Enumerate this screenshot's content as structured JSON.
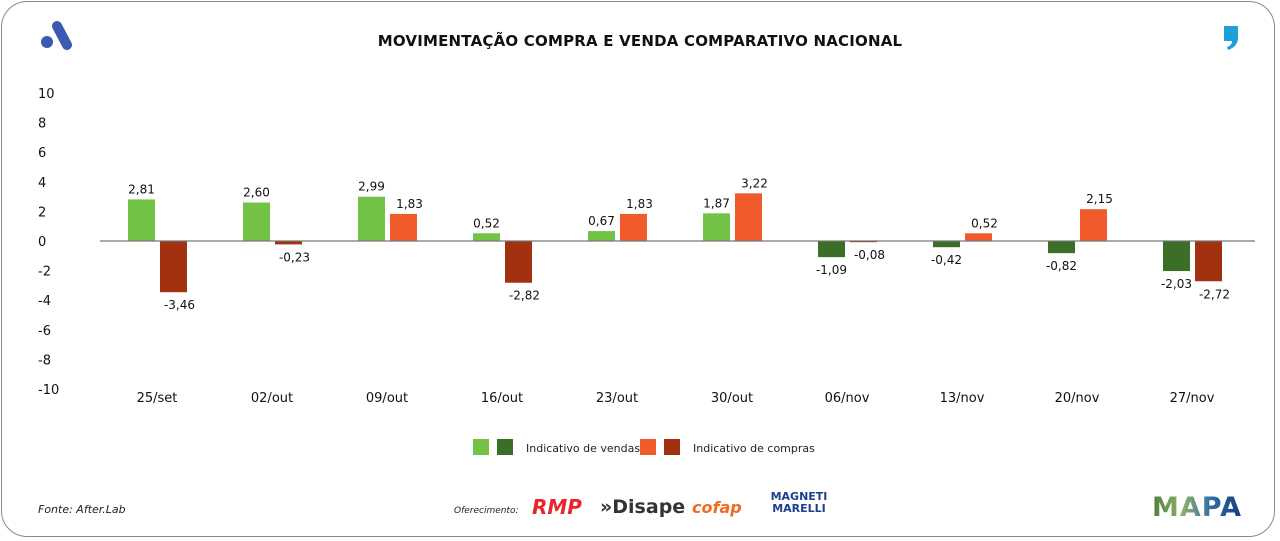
{
  "brand_logo_text": "A",
  "quote_logo_text": "”",
  "chart_data": {
    "type": "bar",
    "title": "MOVIMENTAÇÃO COMPRA E VENDA COMPARATIVO NACIONAL",
    "categories": [
      "25/set",
      "02/out",
      "09/out",
      "16/out",
      "23/out",
      "30/out",
      "06/nov",
      "13/nov",
      "20/nov",
      "27/nov"
    ],
    "series": [
      {
        "name": "Indicativo de vendas",
        "values": [
          2.81,
          2.6,
          2.99,
          0.52,
          0.67,
          1.87,
          -1.09,
          -0.42,
          -0.82,
          -2.03
        ],
        "labels": [
          "2,81",
          "2,60",
          "2,99",
          "0,52",
          "0,67",
          "1,87",
          "-1,09",
          "-0,42",
          "-0,82",
          "-2,03"
        ],
        "color_pos": "#72c245",
        "color_neg": "#3b6e27"
      },
      {
        "name": "Indicativo de compras",
        "values": [
          -3.46,
          -0.23,
          1.83,
          -2.82,
          1.83,
          3.22,
          -0.08,
          0.52,
          2.15,
          -2.72
        ],
        "labels": [
          "-3,46",
          "-0,23",
          "1,83",
          "-2,82",
          "1,83",
          "3,22",
          "-0,08",
          "0,52",
          "2,15",
          "-2,72"
        ],
        "color_pos": "#f15a2a",
        "color_neg": "#a1310f"
      }
    ],
    "ylim": [
      -10,
      10
    ],
    "yticks": [
      10,
      8,
      6,
      4,
      2,
      0,
      -2,
      -4,
      -6,
      -8,
      -10
    ],
    "legend": "bottom",
    "grid": false
  },
  "footer": {
    "source": "Fonte: After.Lab",
    "offer": "Oferecimento:",
    "sponsors": [
      "RMP",
      "»Disape",
      "cofap",
      "MAGNETI MARELLI"
    ],
    "mapa": "MAPA"
  }
}
